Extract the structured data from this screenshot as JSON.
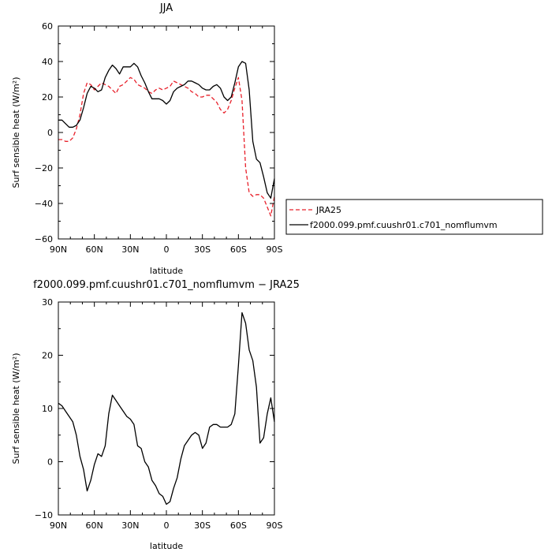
{
  "chart_data": [
    {
      "type": "line",
      "title": "JJA",
      "xlabel": "latitude",
      "ylabel": "Surf sensible heat (W/m²)",
      "xlim": [
        -90,
        90
      ],
      "ylim": [
        -60,
        60
      ],
      "xticks": [
        -90,
        -60,
        -30,
        0,
        30,
        60,
        90
      ],
      "xticklabels": [
        "90N",
        "60N",
        "30N",
        "0",
        "30S",
        "60S",
        "90S"
      ],
      "yticks": [
        -60,
        -40,
        -20,
        0,
        20,
        40,
        60
      ],
      "yticklabels": [
        "−60",
        "−40",
        "−20",
        "0",
        "20",
        "40",
        "60"
      ],
      "legend": "right",
      "series": [
        {
          "name": "JRA25",
          "color": "#e8202a",
          "style": "dashed",
          "x": [
            -90,
            -87,
            -84,
            -81,
            -78,
            -75,
            -72,
            -69,
            -66,
            -63,
            -60,
            -57,
            -54,
            -51,
            -48,
            -45,
            -42,
            -39,
            -36,
            -33,
            -30,
            -27,
            -24,
            -21,
            -18,
            -15,
            -12,
            -9,
            -6,
            -3,
            0,
            3,
            6,
            9,
            12,
            15,
            18,
            21,
            24,
            27,
            30,
            33,
            36,
            39,
            42,
            45,
            48,
            51,
            54,
            57,
            60,
            63,
            66,
            69,
            72,
            75,
            78,
            81,
            84,
            87,
            90
          ],
          "y": [
            -4,
            -4,
            -5,
            -5,
            -3,
            2,
            10,
            22,
            28,
            27,
            24,
            26,
            28,
            27,
            26,
            24,
            22,
            26,
            27,
            29,
            31,
            30,
            27,
            26,
            25,
            23,
            22,
            24,
            25,
            24,
            25,
            26,
            29,
            28,
            27,
            26,
            25,
            23,
            22,
            20,
            20,
            21,
            21,
            19,
            17,
            13,
            11,
            13,
            18,
            25,
            31,
            18,
            -20,
            -34,
            -36,
            -35,
            -35,
            -37,
            -42,
            -47,
            -36
          ]
        },
        {
          "name": "f2000.099.pmf.cuushr01.c701_nomflumvm",
          "color": "#000000",
          "style": "solid",
          "x": [
            -90,
            -87,
            -84,
            -81,
            -78,
            -75,
            -72,
            -69,
            -66,
            -63,
            -60,
            -57,
            -54,
            -51,
            -48,
            -45,
            -42,
            -39,
            -36,
            -33,
            -30,
            -27,
            -24,
            -21,
            -18,
            -15,
            -12,
            -9,
            -6,
            -3,
            0,
            3,
            6,
            9,
            12,
            15,
            18,
            21,
            24,
            27,
            30,
            33,
            36,
            39,
            42,
            45,
            48,
            51,
            54,
            57,
            60,
            63,
            66,
            69,
            72,
            75,
            78,
            81,
            84,
            87,
            90
          ],
          "y": [
            7,
            7,
            5,
            3,
            3,
            4,
            7,
            14,
            22,
            26,
            25,
            23,
            24,
            31,
            35,
            38,
            36,
            33,
            37,
            37,
            37,
            39,
            37,
            32,
            28,
            23,
            19,
            19,
            19,
            18,
            16,
            18,
            23,
            25,
            26,
            27,
            29,
            29,
            28,
            27,
            25,
            24,
            24,
            26,
            27,
            25,
            20,
            18,
            20,
            28,
            37,
            40,
            39,
            24,
            -5,
            -15,
            -17,
            -25,
            -34,
            -37,
            -26
          ]
        }
      ]
    },
    {
      "type": "line",
      "title": "f2000.099.pmf.cuushr01.c701_nomflumvm − JRA25",
      "xlabel": "latitude",
      "ylabel": "Surf sensible heat (W/m²)",
      "xlim": [
        -90,
        90
      ],
      "ylim": [
        -10,
        30
      ],
      "xticks": [
        -90,
        -60,
        -30,
        0,
        30,
        60,
        90
      ],
      "xticklabels": [
        "90N",
        "60N",
        "30N",
        "0",
        "30S",
        "60S",
        "90S"
      ],
      "yticks": [
        -10,
        0,
        10,
        20,
        30
      ],
      "yticklabels": [
        "−10",
        "0",
        "10",
        "20",
        "30"
      ],
      "series": [
        {
          "color": "#000000",
          "style": "solid",
          "x": [
            -90,
            -87,
            -84,
            -81,
            -78,
            -75,
            -72,
            -69,
            -66,
            -63,
            -60,
            -57,
            -54,
            -51,
            -48,
            -45,
            -42,
            -39,
            -36,
            -33,
            -30,
            -27,
            -24,
            -21,
            -18,
            -15,
            -12,
            -9,
            -6,
            -3,
            0,
            3,
            6,
            9,
            12,
            15,
            18,
            21,
            24,
            27,
            30,
            33,
            36,
            39,
            42,
            45,
            48,
            51,
            54,
            57,
            60,
            63,
            66,
            69,
            72,
            75,
            78,
            81,
            84,
            87,
            90
          ],
          "y": [
            11,
            10.5,
            9.5,
            8.5,
            7.5,
            5,
            1,
            -1.5,
            -5.5,
            -3.5,
            -0.5,
            1.5,
            1,
            3,
            9,
            12.5,
            11.5,
            10.5,
            9.5,
            8.5,
            8,
            7,
            3,
            2.5,
            0,
            -1,
            -3.5,
            -4.5,
            -6,
            -6.5,
            -8,
            -7.5,
            -5,
            -3,
            0.5,
            3,
            4,
            5,
            5.5,
            5,
            2.5,
            3.5,
            6.5,
            7,
            7,
            6.5,
            6.5,
            6.5,
            7,
            9,
            18,
            28,
            26,
            21,
            19,
            14,
            3.5,
            4.5,
            9,
            12,
            7.5
          ]
        }
      ]
    }
  ]
}
